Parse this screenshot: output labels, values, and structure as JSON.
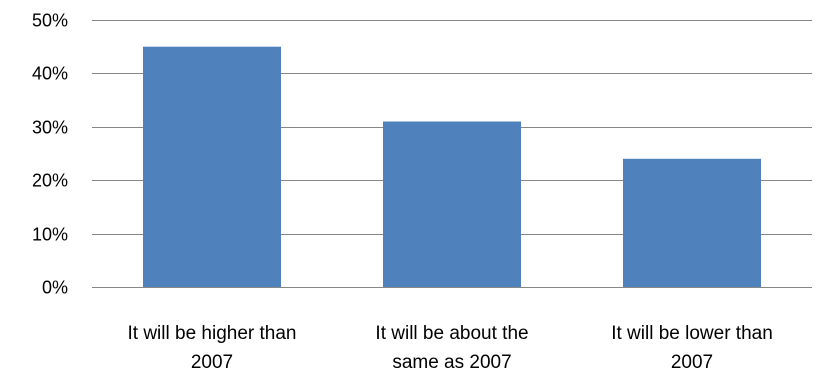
{
  "chart_data": {
    "type": "bar",
    "title": "",
    "xlabel": "",
    "ylabel": "",
    "categories": [
      [
        "It will be higher than",
        "2007"
      ],
      [
        "It will be about the",
        "same as 2007"
      ],
      [
        "It will be lower than",
        "2007"
      ]
    ],
    "values": [
      45,
      31,
      24
    ],
    "ylim": [
      0,
      50
    ],
    "yticks": [
      0,
      10,
      20,
      30,
      40,
      50
    ],
    "ytick_labels": [
      "0%",
      "10%",
      "20%",
      "30%",
      "40%",
      "50%"
    ],
    "grid": true,
    "legend": "none",
    "colors": {
      "bar": "#4f81bd",
      "grid": "#868686",
      "text": "#000000"
    }
  }
}
